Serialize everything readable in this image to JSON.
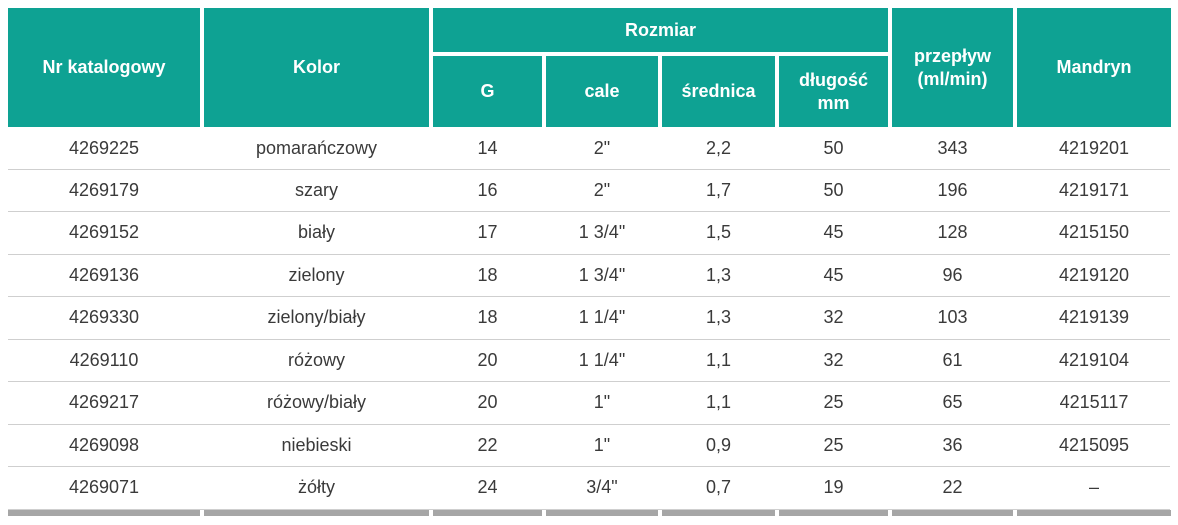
{
  "table": {
    "header": {
      "nr_katalogowy": "Nr katalogowy",
      "kolor": "Kolor",
      "rozmiar": "Rozmiar",
      "sub_g": "G",
      "sub_cale": "cale",
      "sub_srednica": "średnica",
      "sub_dlugosc": "długość\nmm",
      "przeplyw": "przepływ\n(ml/min)",
      "mandryn": "Mandryn"
    },
    "rows": [
      [
        "4269225",
        "pomarańczowy",
        "14",
        "2\"",
        "2,2",
        "50",
        "343",
        "4219201"
      ],
      [
        "4269179",
        "szary",
        "16",
        "2\"",
        "1,7",
        "50",
        "196",
        "4219171"
      ],
      [
        "4269152",
        "biały",
        "17",
        "1 3/4\"",
        "1,5",
        "45",
        "128",
        "4215150"
      ],
      [
        "4269136",
        "zielony",
        "18",
        "1 3/4\"",
        "1,3",
        "45",
        "96",
        "4219120"
      ],
      [
        "4269330",
        "zielony/biały",
        "18",
        "1 1/4\"",
        "1,3",
        "32",
        "103",
        "4219139"
      ],
      [
        "4269110",
        "różowy",
        "20",
        "1 1/4\"",
        "1,1",
        "32",
        "61",
        "4219104"
      ],
      [
        "4269217",
        "różowy/biały",
        "20",
        "1\"",
        "1,1",
        "25",
        "65",
        "4215117"
      ],
      [
        "4269098",
        "niebieski",
        "22",
        "1\"",
        "0,9",
        "25",
        "36",
        "4215095"
      ],
      [
        "4269071",
        "żółty",
        "24",
        "3/4\"",
        "0,7",
        "19",
        "22",
        "–"
      ]
    ]
  },
  "colors": {
    "header_bg": "#0ea293",
    "row_separator": "#cfcfcf",
    "bottom_bar": "#a6a6a6",
    "text": "#3a3a3a"
  }
}
